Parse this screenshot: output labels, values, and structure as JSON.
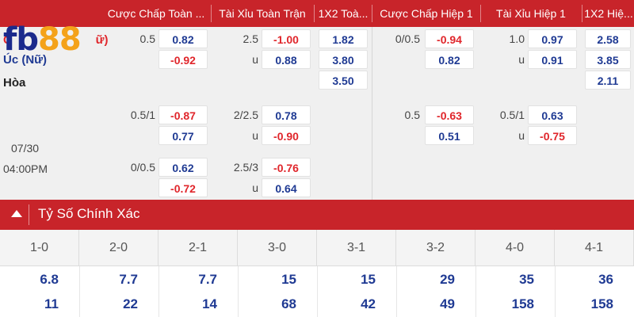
{
  "brand": {
    "logo_fb": "fb",
    "logo_88": "88"
  },
  "headers": [
    "Cược Chấp Toàn ...",
    "Tài Xỉu Toàn Trận",
    "1X2 Toà...",
    "Cược Chấp Hiệp 1",
    "Tài Xỉu Hiệp 1",
    "1X2 Hiệ..."
  ],
  "match": {
    "home": "G",
    "home_suffix": "ữ)",
    "away": "Úc (Nữ)",
    "draw": "Hòa",
    "date": "07/30",
    "time": "04:00PM"
  },
  "rows": [
    {
      "hdp_line": "0.5",
      "hdp_home": "0.82",
      "hdp_away": "-0.92",
      "ou_line": "2.5",
      "ou_over": "-1.00",
      "ou_u": "u",
      "ou_under": "0.88",
      "x12_home": "1.82",
      "x12_away": "3.80",
      "x12_draw": "3.50",
      "h1_hdp_line": "0/0.5",
      "h1_hdp_home": "-0.94",
      "h1_hdp_away": "0.82",
      "h1_ou_line": "1.0",
      "h1_ou_over": "0.97",
      "h1_ou_u": "u",
      "h1_ou_under": "0.91",
      "h1_x12_home": "2.58",
      "h1_x12_away": "3.85",
      "h1_x12_draw": "2.11"
    },
    {
      "hdp_line": "0.5/1",
      "hdp_home": "-0.87",
      "hdp_away": "0.77",
      "ou_line": "2/2.5",
      "ou_over": "0.78",
      "ou_u": "u",
      "ou_under": "-0.90",
      "h1_hdp_line": "0.5",
      "h1_hdp_home": "-0.63",
      "h1_hdp_away": "0.51",
      "h1_ou_line": "0.5/1",
      "h1_ou_over": "0.63",
      "h1_ou_u": "u",
      "h1_ou_under": "-0.75"
    },
    {
      "hdp_line": "0/0.5",
      "hdp_home": "0.62",
      "hdp_away": "-0.72",
      "ou_line": "2.5/3",
      "ou_over": "-0.76",
      "ou_u": "u",
      "ou_under": "0.64"
    }
  ],
  "correct_score": {
    "title": "Tỷ Số Chính Xác",
    "scores": [
      "1-0",
      "2-0",
      "2-1",
      "3-0",
      "3-1",
      "3-2",
      "4-0",
      "4-1"
    ],
    "home_odds": [
      "6.8",
      "7.7",
      "7.7",
      "15",
      "15",
      "29",
      "35",
      "36"
    ],
    "away_odds": [
      "11",
      "22",
      "14",
      "68",
      "42",
      "49",
      "158",
      "158"
    ]
  },
  "colors": {
    "header_red": "#c8242a",
    "positive": "#1f3a93",
    "negative": "#e0262b",
    "logo_blue": "#1b2a8c",
    "logo_orange": "#f4a21a"
  }
}
